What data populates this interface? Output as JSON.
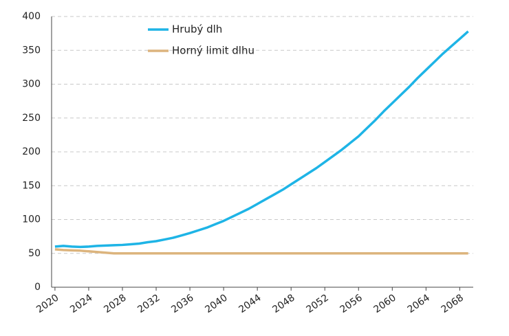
{
  "chart_data": {
    "type": "line",
    "x": [
      2020,
      2021,
      2022,
      2023,
      2024,
      2025,
      2026,
      2027,
      2028,
      2029,
      2030,
      2031,
      2032,
      2033,
      2034,
      2035,
      2036,
      2037,
      2038,
      2039,
      2040,
      2041,
      2042,
      2043,
      2044,
      2045,
      2046,
      2047,
      2048,
      2049,
      2050,
      2051,
      2052,
      2053,
      2054,
      2055,
      2056,
      2057,
      2058,
      2059,
      2060,
      2061,
      2062,
      2063,
      2064,
      2065,
      2066,
      2067,
      2068,
      2069
    ],
    "series": [
      {
        "name": "Hrubý dlh",
        "color": "#1eb4e6",
        "values": [
          60,
          61,
          60,
          59.5,
          60,
          61,
          61.5,
          62,
          62.5,
          63.5,
          64.5,
          66.5,
          68,
          70.5,
          73,
          76.5,
          80,
          84,
          88,
          93,
          98,
          104,
          110,
          116,
          123,
          130,
          137,
          144,
          152,
          160,
          168,
          176,
          185,
          194,
          203,
          213,
          223,
          235,
          247,
          260,
          272,
          284,
          296,
          309,
          321,
          333,
          345,
          356,
          367,
          378
        ]
      },
      {
        "name": "Horný limit dlhu",
        "color": "#dcb47d",
        "values": [
          56,
          55,
          54.5,
          54,
          53,
          52,
          51,
          50,
          50,
          50,
          50,
          50,
          50,
          50,
          50,
          50,
          50,
          50,
          50,
          50,
          50,
          50,
          50,
          50,
          50,
          50,
          50,
          50,
          50,
          50,
          50,
          50,
          50,
          50,
          50,
          50,
          50,
          50,
          50,
          50,
          50,
          50,
          50,
          50,
          50,
          50,
          50,
          50,
          50,
          50
        ]
      }
    ],
    "xlim": [
      2019.6,
      2069.6
    ],
    "xticks": [
      2020,
      2024,
      2028,
      2032,
      2036,
      2040,
      2044,
      2048,
      2052,
      2056,
      2060,
      2064,
      2068
    ],
    "ylim": [
      0,
      400
    ],
    "yticks": [
      0,
      50,
      100,
      150,
      200,
      250,
      300,
      350,
      400
    ],
    "grid": true,
    "legend": "upper center"
  }
}
